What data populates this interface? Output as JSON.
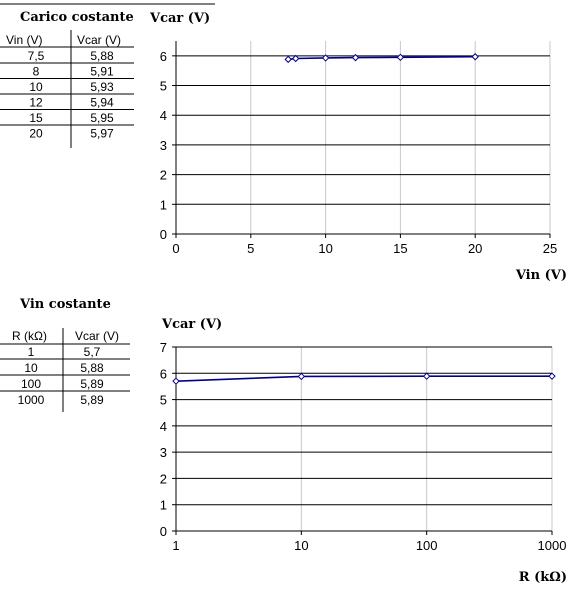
{
  "tables": [
    {
      "title": "Carico costante",
      "headers": [
        "Vin (V)",
        "Vcar (V)"
      ],
      "rows": [
        [
          "7,5",
          "5,88"
        ],
        [
          "8",
          "5,91"
        ],
        [
          "10",
          "5,93"
        ],
        [
          "12",
          "5,94"
        ],
        [
          "15",
          "5,95"
        ],
        [
          "20",
          "5,97"
        ]
      ]
    },
    {
      "title": "Vin costante",
      "headers": [
        "R (kΩ)",
        "Vcar (V)"
      ],
      "rows": [
        [
          "1",
          "5,7"
        ],
        [
          "10",
          "5,88"
        ],
        [
          "100",
          "5,89"
        ],
        [
          "1000",
          "5,89"
        ]
      ]
    }
  ],
  "chart_data": [
    {
      "type": "scatter",
      "title": "",
      "xlabel": "Vin (V)",
      "ylabel": "Vcar (V)",
      "xlim": [
        0,
        25
      ],
      "ylim": [
        0,
        6.5
      ],
      "xticks": [
        "0",
        "5",
        "10",
        "15",
        "20",
        "25"
      ],
      "yticks": [
        "0",
        "1",
        "2",
        "3",
        "4",
        "5",
        "6"
      ],
      "grid": true,
      "colors": {
        "series": "#00008b",
        "marker_fill": "#ffffff"
      },
      "x": [
        7.5,
        8,
        10,
        12,
        15,
        20
      ],
      "y": [
        5.88,
        5.91,
        5.93,
        5.94,
        5.95,
        5.97
      ]
    },
    {
      "type": "scatter",
      "title": "",
      "xlabel": "R (kΩ)",
      "ylabel": "Vcar (V)",
      "xscale": "log",
      "xlim": [
        1,
        1000
      ],
      "ylim": [
        0,
        7
      ],
      "xticks": [
        "1",
        "10",
        "100",
        "1000"
      ],
      "yticks": [
        "0",
        "1",
        "2",
        "3",
        "4",
        "5",
        "6",
        "7"
      ],
      "grid": true,
      "colors": {
        "series": "#00008b",
        "marker_fill": "#ffffff"
      },
      "x": [
        1,
        10,
        100,
        1000
      ],
      "y": [
        5.7,
        5.88,
        5.89,
        5.89
      ]
    }
  ]
}
